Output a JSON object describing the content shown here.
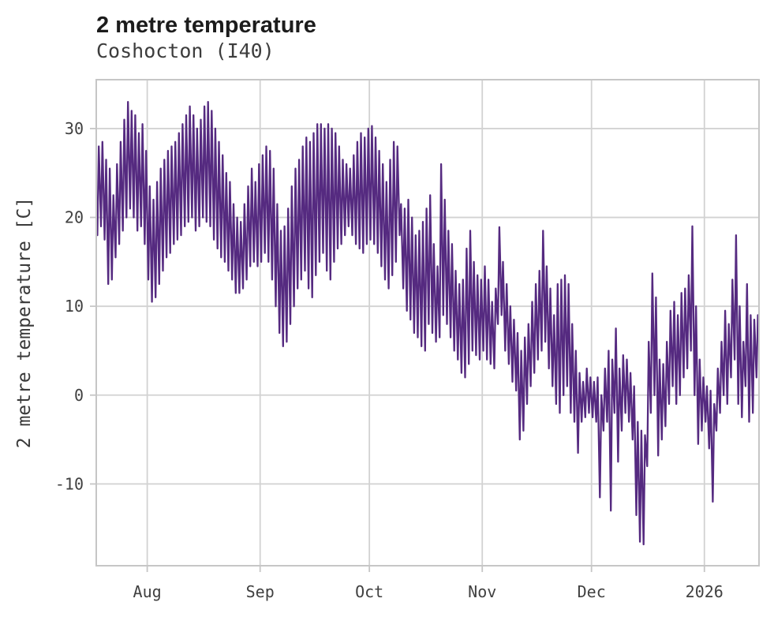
{
  "chart": {
    "title": "2 metre temperature",
    "subtitle": "Coshocton (I40)",
    "ylabel": "2 metre temperature [C]"
  },
  "chart_data": {
    "type": "line",
    "title": "2 metre temperature",
    "subtitle": "Coshocton (I40)",
    "xlabel": "",
    "ylabel": "2 metre temperature [C]",
    "legend": "none",
    "grid": true,
    "line_color": "#552a80",
    "grid_color": "#d2d2d2",
    "frame_color": "#c6c6c6",
    "tick_text_color": "#404040",
    "x_tick_labels": [
      "Aug",
      "Sep",
      "Oct",
      "Nov",
      "Dec",
      "2026"
    ],
    "x_tick_days": [
      14,
      45,
      75,
      106,
      136,
      167
    ],
    "y_ticks": [
      -10,
      0,
      10,
      20,
      30
    ],
    "y_range": [
      -19.2,
      35.5
    ],
    "x_range_days": [
      0,
      182
    ],
    "series_description": "hourly 2 m temperature, approximated by daily [min,max] pairs from mid-July 2025 (day 0) to mid-January 2026",
    "daily_min_max": [
      [
        18,
        28
      ],
      [
        19,
        28.5
      ],
      [
        17.5,
        26.5
      ],
      [
        12.5,
        25.5
      ],
      [
        13,
        22.5
      ],
      [
        15.5,
        26
      ],
      [
        17,
        28.5
      ],
      [
        18.5,
        31
      ],
      [
        20,
        33
      ],
      [
        21,
        32
      ],
      [
        20,
        31.5
      ],
      [
        18.5,
        29.5
      ],
      [
        19,
        30.5
      ],
      [
        17,
        27.5
      ],
      [
        13,
        23.5
      ],
      [
        10.5,
        22
      ],
      [
        11,
        24
      ],
      [
        12.5,
        25.5
      ],
      [
        14,
        26.5
      ],
      [
        15.5,
        27.5
      ],
      [
        16,
        28
      ],
      [
        17,
        28.5
      ],
      [
        17.5,
        29.5
      ],
      [
        18,
        30.5
      ],
      [
        19,
        31.5
      ],
      [
        19.5,
        32.5
      ],
      [
        20,
        31.5
      ],
      [
        18.5,
        30
      ],
      [
        19,
        31
      ],
      [
        20,
        32.5
      ],
      [
        19.5,
        33
      ],
      [
        19,
        32
      ],
      [
        17.5,
        30
      ],
      [
        16.5,
        28.5
      ],
      [
        15.5,
        27
      ],
      [
        15,
        25
      ],
      [
        14,
        24
      ],
      [
        13,
        21.5
      ],
      [
        11.5,
        20
      ],
      [
        11.5,
        19.5
      ],
      [
        12,
        21.5
      ],
      [
        13,
        23.5
      ],
      [
        14.5,
        25.5
      ],
      [
        15,
        24
      ],
      [
        14.5,
        26
      ],
      [
        15,
        27
      ],
      [
        16,
        28
      ],
      [
        15,
        27.5
      ],
      [
        13,
        25.5
      ],
      [
        10,
        21.5
      ],
      [
        7,
        18.5
      ],
      [
        5.5,
        19
      ],
      [
        6,
        21
      ],
      [
        8,
        23.5
      ],
      [
        10,
        25.5
      ],
      [
        12,
        26.5
      ],
      [
        13,
        28
      ],
      [
        14,
        29
      ],
      [
        12,
        28.5
      ],
      [
        11,
        29.5
      ],
      [
        13.5,
        30.5
      ],
      [
        15,
        30.5
      ],
      [
        16,
        30
      ],
      [
        14,
        30.5
      ],
      [
        13,
        30
      ],
      [
        15,
        29.5
      ],
      [
        16.5,
        28
      ],
      [
        17,
        26.5
      ],
      [
        18,
        26
      ],
      [
        19,
        25.5
      ],
      [
        18,
        27
      ],
      [
        17,
        28.5
      ],
      [
        16.5,
        29.5
      ],
      [
        16,
        29
      ],
      [
        17,
        30
      ],
      [
        17.5,
        30.3
      ],
      [
        17,
        29
      ],
      [
        16,
        27.5
      ],
      [
        14.5,
        26
      ],
      [
        13,
        24
      ],
      [
        12,
        26.5
      ],
      [
        13.5,
        28.5
      ],
      [
        15,
        28
      ],
      [
        18,
        21.5
      ],
      [
        12,
        21
      ],
      [
        9.5,
        22
      ],
      [
        8.5,
        20
      ],
      [
        7,
        18
      ],
      [
        6.5,
        18.5
      ],
      [
        5.5,
        19.5
      ],
      [
        5,
        21
      ],
      [
        8,
        22.5
      ],
      [
        7,
        17
      ],
      [
        6,
        14.5
      ],
      [
        6.5,
        26
      ],
      [
        9,
        22
      ],
      [
        8,
        18.5
      ],
      [
        6.5,
        17
      ],
      [
        5,
        14
      ],
      [
        4,
        12.5
      ],
      [
        2.5,
        13
      ],
      [
        2,
        16.5
      ],
      [
        3.5,
        18.5
      ],
      [
        5,
        15
      ],
      [
        4.5,
        13.5
      ],
      [
        4,
        13
      ],
      [
        5,
        14.5
      ],
      [
        4,
        13
      ],
      [
        3.5,
        10.5
      ],
      [
        3,
        12
      ],
      [
        8,
        18.9
      ],
      [
        9,
        15
      ],
      [
        5,
        12.5
      ],
      [
        3.5,
        10
      ],
      [
        1.5,
        8.5
      ],
      [
        0.5,
        7
      ],
      [
        -5,
        5
      ],
      [
        -4,
        6.5
      ],
      [
        -1,
        8
      ],
      [
        1,
        10.5
      ],
      [
        2.5,
        12.5
      ],
      [
        4,
        14
      ],
      [
        5,
        18.5
      ],
      [
        6,
        14.5
      ],
      [
        3,
        12
      ],
      [
        1,
        9
      ],
      [
        -1,
        12.5
      ],
      [
        -2,
        13
      ],
      [
        0,
        13.5
      ],
      [
        1,
        12.5
      ],
      [
        -2,
        8
      ],
      [
        -3,
        5
      ],
      [
        -6.5,
        2.5
      ],
      [
        -3,
        1.5
      ],
      [
        -2.5,
        3
      ],
      [
        -2,
        2
      ],
      [
        -2.5,
        1.5
      ],
      [
        -3,
        2
      ],
      [
        -11.5,
        0
      ],
      [
        -4,
        3
      ],
      [
        -3,
        5
      ],
      [
        -13,
        4
      ],
      [
        -2,
        7.5
      ],
      [
        -7.5,
        3
      ],
      [
        -4,
        4.5
      ],
      [
        -2,
        4
      ],
      [
        -3,
        2.5
      ],
      [
        -5,
        1
      ],
      [
        -13.5,
        -3
      ],
      [
        -16.5,
        -4
      ],
      [
        -16.8,
        -4.5
      ],
      [
        -8,
        6
      ],
      [
        -2,
        13.7
      ],
      [
        0,
        11
      ],
      [
        -6.8,
        4
      ],
      [
        -5,
        3.5
      ],
      [
        -3.5,
        6
      ],
      [
        -1,
        9.5
      ],
      [
        1,
        10.5
      ],
      [
        -1,
        9
      ],
      [
        0,
        11.5
      ],
      [
        2,
        12
      ],
      [
        3,
        13.5
      ],
      [
        5,
        19
      ],
      [
        0,
        10
      ],
      [
        -5.5,
        4
      ],
      [
        -4,
        2
      ],
      [
        -3,
        1
      ],
      [
        -6,
        0.5
      ],
      [
        -12,
        -1
      ],
      [
        -4,
        3
      ],
      [
        -2,
        6
      ],
      [
        0,
        9.5
      ],
      [
        -1,
        8
      ],
      [
        2,
        13
      ],
      [
        4,
        18
      ],
      [
        -1,
        10
      ],
      [
        -2.5,
        6
      ],
      [
        1,
        12.5
      ],
      [
        -3,
        9
      ],
      [
        -2,
        8.5
      ],
      [
        2,
        9
      ]
    ]
  }
}
